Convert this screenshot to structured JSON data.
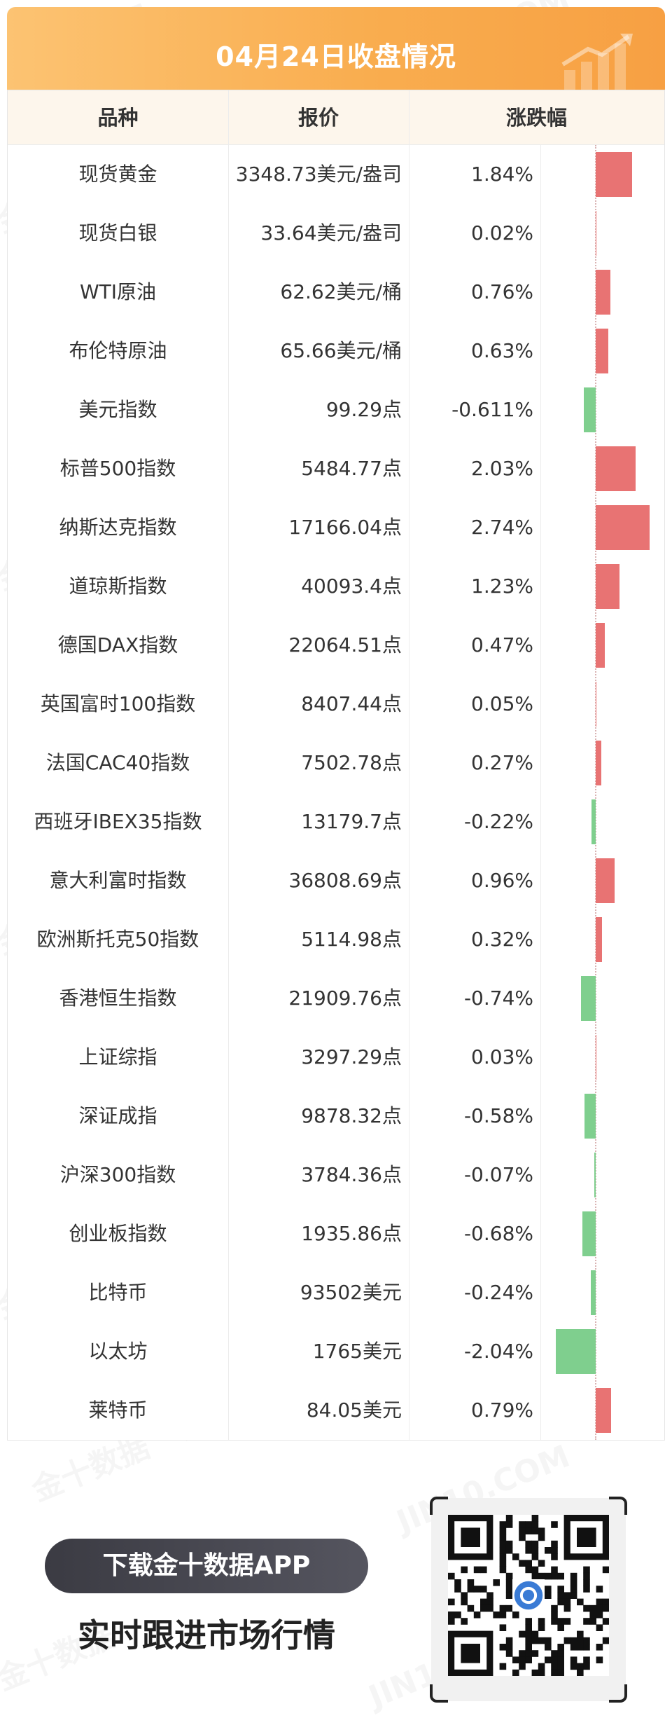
{
  "header": {
    "title": "04月24日收盘情况"
  },
  "table": {
    "columns": [
      "品种",
      "报价",
      "涨跌幅"
    ],
    "rows": [
      {
        "name": "现货黄金",
        "price": "3348.73美元/盎司",
        "change": "1.84%",
        "value": 1.84
      },
      {
        "name": "现货白银",
        "price": "33.64美元/盎司",
        "change": "0.02%",
        "value": 0.02
      },
      {
        "name": "WTI原油",
        "price": "62.62美元/桶",
        "change": "0.76%",
        "value": 0.76
      },
      {
        "name": "布伦特原油",
        "price": "65.66美元/桶",
        "change": "0.63%",
        "value": 0.63
      },
      {
        "name": "美元指数",
        "price": "99.29点",
        "change": "-0.611%",
        "value": -0.611
      },
      {
        "name": "标普500指数",
        "price": "5484.77点",
        "change": "2.03%",
        "value": 2.03
      },
      {
        "name": "纳斯达克指数",
        "price": "17166.04点",
        "change": "2.74%",
        "value": 2.74
      },
      {
        "name": "道琼斯指数",
        "price": "40093.4点",
        "change": "1.23%",
        "value": 1.23
      },
      {
        "name": "德国DAX指数",
        "price": "22064.51点",
        "change": "0.47%",
        "value": 0.47
      },
      {
        "name": "英国富时100指数",
        "price": "8407.44点",
        "change": "0.05%",
        "value": 0.05
      },
      {
        "name": "法国CAC40指数",
        "price": "7502.78点",
        "change": "0.27%",
        "value": 0.27
      },
      {
        "name": "西班牙IBEX35指数",
        "price": "13179.7点",
        "change": "-0.22%",
        "value": -0.22
      },
      {
        "name": "意大利富时指数",
        "price": "36808.69点",
        "change": "0.96%",
        "value": 0.96
      },
      {
        "name": "欧洲斯托克50指数",
        "price": "5114.98点",
        "change": "0.32%",
        "value": 0.32
      },
      {
        "name": "香港恒生指数",
        "price": "21909.76点",
        "change": "-0.74%",
        "value": -0.74
      },
      {
        "name": "上证综指",
        "price": "3297.29点",
        "change": "0.03%",
        "value": 0.03
      },
      {
        "name": "深证成指",
        "price": "9878.32点",
        "change": "-0.58%",
        "value": -0.58
      },
      {
        "name": "沪深300指数",
        "price": "3784.36点",
        "change": "-0.07%",
        "value": -0.07
      },
      {
        "name": "创业板指数",
        "price": "1935.86点",
        "change": "-0.68%",
        "value": -0.68
      },
      {
        "name": "比特币",
        "price": "93502美元",
        "change": "-0.24%",
        "value": -0.24
      },
      {
        "name": "以太坊",
        "price": "1765美元",
        "change": "-2.04%",
        "value": -2.04
      },
      {
        "name": "莱特币",
        "price": "84.05美元",
        "change": "0.79%",
        "value": 0.79
      }
    ]
  },
  "chart_data": {
    "type": "bar",
    "categories": [
      "现货黄金",
      "现货白银",
      "WTI原油",
      "布伦特原油",
      "美元指数",
      "标普500指数",
      "纳斯达克指数",
      "道琼斯指数",
      "德国DAX指数",
      "英国富时100指数",
      "法国CAC40指数",
      "西班牙IBEX35指数",
      "意大利富时指数",
      "欧洲斯托克50指数",
      "香港恒生指数",
      "上证综指",
      "深证成指",
      "沪深300指数",
      "创业板指数",
      "比特币",
      "以太坊",
      "莱特币"
    ],
    "values": [
      1.84,
      0.02,
      0.76,
      0.63,
      -0.611,
      2.03,
      2.74,
      1.23,
      0.47,
      0.05,
      0.27,
      -0.22,
      0.96,
      0.32,
      -0.74,
      0.03,
      -0.58,
      -0.07,
      -0.68,
      -0.24,
      -2.04,
      0.79
    ],
    "orientation": "horizontal",
    "positive_color": "#e87373",
    "negative_color": "#7fcf8e"
  },
  "footer": {
    "download_label": "下载金十数据APP",
    "slogan": "实时跟进市场行情"
  },
  "watermark_text": "金十数据",
  "watermark_domain": "JIN10.COM",
  "colors": {
    "header_gradient_start": "#fcc372",
    "header_gradient_end": "#f7a043",
    "positive": "#e87373",
    "negative": "#7fcf8e"
  }
}
